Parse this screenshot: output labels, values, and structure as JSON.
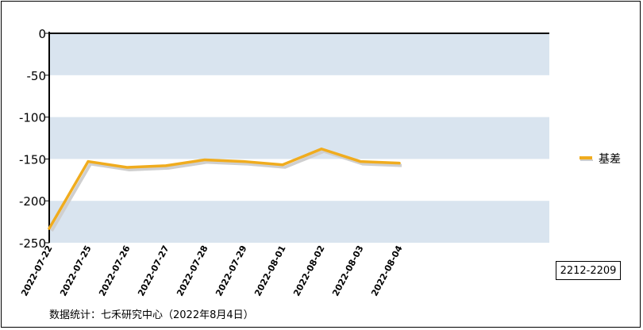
{
  "chart_data": {
    "type": "line",
    "x": [
      "2022-07-22",
      "2022-07-25",
      "2022-07-26",
      "2022-07-27",
      "2022-07-28",
      "2022-07-29",
      "2022-08-01",
      "2022-08-02",
      "2022-08-03",
      "2022-08-04"
    ],
    "series": [
      {
        "name": "基差",
        "values": [
          -233,
          -153,
          -160,
          -158,
          -151,
          -153,
          -157,
          -138,
          -153,
          -155
        ]
      }
    ],
    "y_ticks": [
      "0",
      "-50",
      "-100",
      "-150",
      "-200",
      "-250"
    ],
    "ylim": [
      -250,
      0
    ],
    "bands": [
      [
        -50,
        0
      ],
      [
        -150,
        -100
      ],
      [
        -250,
        -200
      ]
    ],
    "colors": {
      "line": "#f0ac1e",
      "shadow": "#cfcfcf",
      "band": "#d9e4ef"
    },
    "legend_position": "right"
  },
  "contract_label": "2212-2209",
  "source_note": "数据统计：七禾研究中心（2022年8月4日）"
}
